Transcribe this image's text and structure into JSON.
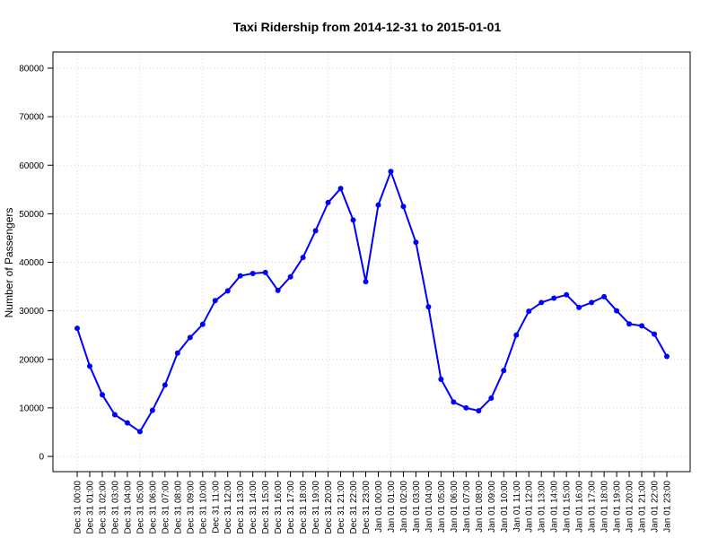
{
  "chart_data": {
    "type": "line",
    "title": "Taxi Ridership from 2014-12-31 to 2015-01-01",
    "xlabel": "",
    "ylabel": "Number of Passengers",
    "ylim": [
      0,
      80000
    ],
    "yticks": [
      "0",
      "10000",
      "20000",
      "30000",
      "40000",
      "50000",
      "60000",
      "70000",
      "80000"
    ],
    "grid": true,
    "legend": "none",
    "color": "#0000ff",
    "categories": [
      "Dec 31 00:00",
      "Dec 31 01:00",
      "Dec 31 02:00",
      "Dec 31 03:00",
      "Dec 31 04:00",
      "Dec 31 05:00",
      "Dec 31 06:00",
      "Dec 31 07:00",
      "Dec 31 08:00",
      "Dec 31 09:00",
      "Dec 31 10:00",
      "Dec 31 11:00",
      "Dec 31 12:00",
      "Dec 31 13:00",
      "Dec 31 14:00",
      "Dec 31 15:00",
      "Dec 31 16:00",
      "Dec 31 17:00",
      "Dec 31 18:00",
      "Dec 31 19:00",
      "Dec 31 20:00",
      "Dec 31 21:00",
      "Dec 31 22:00",
      "Dec 31 23:00",
      "Jan 01 00:00",
      "Jan 01 01:00",
      "Jan 01 02:00",
      "Jan 01 03:00",
      "Jan 01 04:00",
      "Jan 01 05:00",
      "Jan 01 06:00",
      "Jan 01 07:00",
      "Jan 01 08:00",
      "Jan 01 09:00",
      "Jan 01 10:00",
      "Jan 01 11:00",
      "Jan 01 12:00",
      "Jan 01 13:00",
      "Jan 01 14:00",
      "Jan 01 15:00",
      "Jan 01 16:00",
      "Jan 01 17:00",
      "Jan 01 18:00",
      "Jan 01 19:00",
      "Jan 01 20:00",
      "Jan 01 21:00",
      "Jan 01 22:00",
      "Jan 01 23:00"
    ],
    "values": [
      26400,
      18600,
      12700,
      8600,
      6900,
      5100,
      9500,
      14700,
      21300,
      24500,
      27200,
      32100,
      34100,
      37200,
      37700,
      37900,
      34200,
      37000,
      41000,
      46500,
      52300,
      55200,
      48700,
      36000,
      51800,
      58700,
      51500,
      44100,
      30800,
      15900,
      11200,
      10000,
      9400,
      12000,
      17700,
      25000,
      29900,
      31700,
      32600,
      33300,
      30700,
      31700,
      32900,
      30000,
      27300,
      26900,
      25200,
      20600
    ]
  }
}
